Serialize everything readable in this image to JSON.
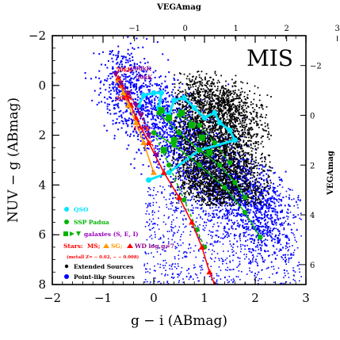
{
  "chart_data": {
    "type": "scatter",
    "panel_label": "MIS",
    "xlabel": "g − i (ABmag)",
    "ylabel": "NUV − g (ABmag)",
    "top_axis_label": "VEGAmag",
    "right_axis_label": "VEGAmag",
    "xlim": [
      -2,
      3
    ],
    "ylim": [
      8,
      -2
    ],
    "x_ticks": [
      "−2",
      "−1",
      "0",
      "1",
      "2",
      "3"
    ],
    "y_ticks": [
      "−2",
      "0",
      "2",
      "4",
      "6",
      "8"
    ],
    "top_ticks": [
      "−1",
      "0",
      "1",
      "2",
      "3"
    ],
    "right_ticks": [
      "−2",
      "0",
      "2",
      "4",
      "6"
    ],
    "colors": {
      "extended": "#000000",
      "point_like": "#0000ff",
      "qso": "#00e5ff",
      "ssp": "#00b400",
      "stars_ms": "#ff0000",
      "stars_sg": "#ff9900",
      "stars_wd": "#ff0000",
      "galaxies_label": "#9b00c0",
      "wd_label": "#8b008b"
    },
    "temperature_labels": [
      {
        "text": "50kK",
        "x": -0.75,
        "y": -0.55,
        "color": "#ff0000"
      },
      {
        "text": "200kK",
        "x": -0.45,
        "y": -0.6,
        "color": "#8b008b"
      },
      {
        "text": "30kK",
        "x": -0.35,
        "y": -0.25,
        "color": "#8b008b"
      },
      {
        "text": "20kK",
        "x": -0.75,
        "y": 0.6,
        "color": "#ff0000"
      },
      {
        "text": "10kK",
        "x": -0.4,
        "y": 1.8,
        "color": "#ff0000"
      }
    ],
    "series": [
      {
        "name": "QSO",
        "color": "#00e5ff"
      },
      {
        "name": "SSP Padua",
        "color": "#00b400"
      },
      {
        "name": "galaxies (S, E, I)",
        "color": "#00b400"
      },
      {
        "name": "Stars: MS, SG, WD",
        "color": "#ff0000"
      },
      {
        "name": "Extended Sources",
        "color": "#000000"
      },
      {
        "name": "Point-like Sources",
        "color": "#0000ff"
      }
    ],
    "legend": {
      "qso": "QSO",
      "ssp": "SSP Padua",
      "galaxies_prefix": "galaxies (S, E, I)",
      "stars_prefix": "Stars:",
      "stars_ms": "MS;",
      "stars_sg": "SG;",
      "stars_wd": "WD log g=7",
      "metall": "(metall Z=  − 0.02, − − 0.008)",
      "extended": "Extended Sources",
      "point_like": "Point-like Sources"
    },
    "qso_track": {
      "x": [
        -0.3,
        -0.2,
        0.0,
        0.15,
        0.1,
        0.3,
        0.4,
        0.6,
        0.8,
        1.0,
        1.2,
        1.3,
        1.5,
        1.6,
        0.9,
        0.3,
        -0.1
      ],
      "y": [
        0.8,
        0.4,
        0.3,
        0.3,
        0.9,
        1.2,
        0.6,
        0.5,
        0.9,
        1.3,
        1.1,
        1.5,
        1.8,
        2.2,
        2.6,
        3.5,
        3.8
      ]
    },
    "ssp_tracks": [
      {
        "x": [
          0.0,
          0.4,
          0.9,
          1.4,
          1.8,
          2.1
        ],
        "y": [
          1.9,
          2.4,
          3.2,
          4.1,
          5.1,
          6.1
        ]
      },
      {
        "x": [
          0.0,
          0.3,
          0.6,
          0.85,
          1.0
        ],
        "y": [
          1.9,
          3.2,
          4.6,
          5.8,
          6.5
        ]
      },
      {
        "x": [
          0.1,
          0.5,
          0.9,
          1.3,
          1.6,
          1.8
        ],
        "y": [
          1.1,
          1.9,
          2.6,
          3.2,
          3.9,
          4.5
        ]
      },
      {
        "x": [
          0.5,
          0.9,
          1.2,
          1.5
        ],
        "y": [
          1.2,
          1.6,
          2.3,
          3.1
        ]
      }
    ],
    "galaxy_points": {
      "x": [
        0.15,
        0.3,
        0.55,
        0.75,
        0.4,
        0.2,
        0.95,
        1.1
      ],
      "y": [
        1.0,
        1.3,
        1.1,
        1.6,
        2.2,
        2.6,
        2.1,
        2.7
      ]
    },
    "stars_ms": {
      "x": [
        -0.7,
        -0.65,
        -0.55,
        -0.45,
        -0.35,
        -0.1,
        0.2,
        0.5,
        0.75,
        0.95,
        1.1,
        1.2
      ],
      "y": [
        -0.3,
        0.0,
        0.4,
        0.8,
        1.3,
        2.3,
        3.5,
        4.5,
        5.5,
        6.5,
        7.5,
        8.0
      ]
    },
    "stars_sg": {
      "x": [
        -0.7,
        -0.6,
        -0.5,
        -0.35,
        -0.2,
        0.0
      ],
      "y": [
        -0.2,
        0.3,
        0.8,
        1.5,
        2.3,
        3.5
      ]
    },
    "stars_wd": {
      "x": [
        -0.75,
        -0.65,
        -0.5,
        -0.35,
        -0.25,
        -0.1,
        0.05
      ],
      "y": [
        -0.45,
        -0.1,
        0.3,
        0.8,
        1.2,
        2.0,
        2.8
      ]
    }
  }
}
